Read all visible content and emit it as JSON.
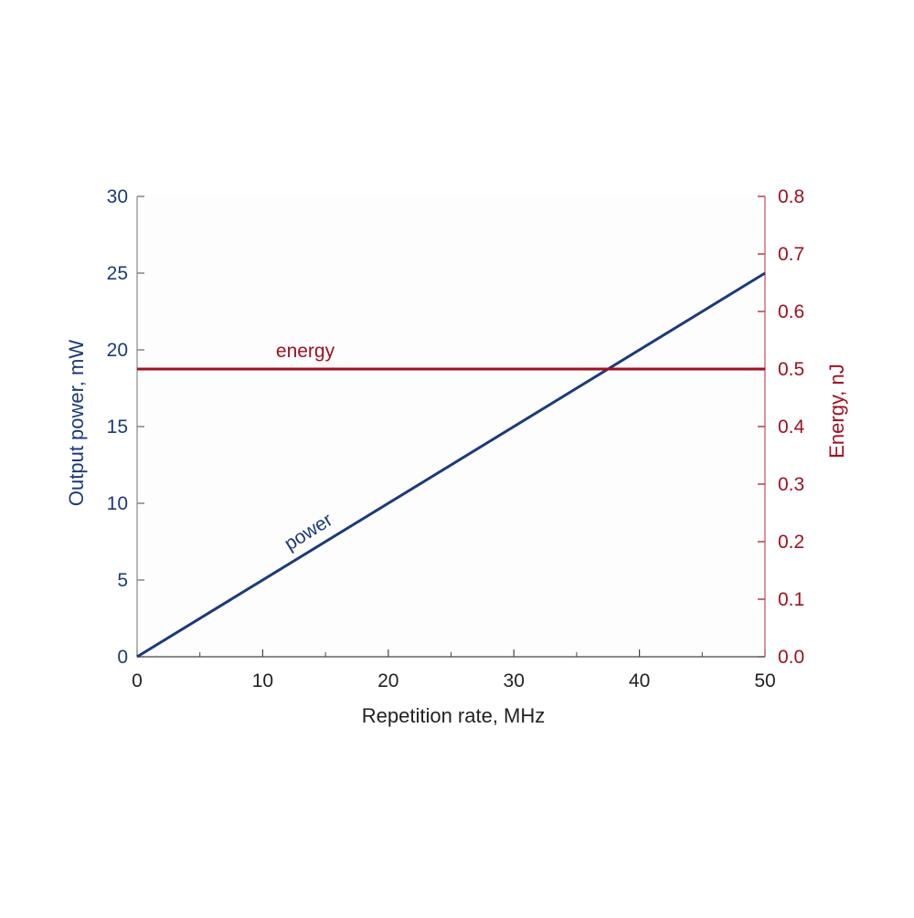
{
  "chart_data": {
    "type": "line",
    "xlabel": "Repetition rate, MHz",
    "ylabel_left": "Output power, mW",
    "ylabel_right": "Energy, nJ",
    "xlim": [
      0,
      50
    ],
    "ylim_left": [
      0,
      30
    ],
    "ylim_right": [
      0,
      0.8
    ],
    "x_ticks": [
      "0",
      "10",
      "20",
      "30",
      "40",
      "50"
    ],
    "y_left_ticks": [
      "0",
      "5",
      "10",
      "15",
      "20",
      "25",
      "30"
    ],
    "y_right_ticks": [
      "0.0",
      "0.1",
      "0.2",
      "0.3",
      "0.4",
      "0.5",
      "0.6",
      "0.7",
      "0.8"
    ],
    "grid": false,
    "series": [
      {
        "name": "power",
        "axis": "left",
        "color": "#1b3a7a",
        "x": [
          0,
          50
        ],
        "y": [
          0,
          25
        ]
      },
      {
        "name": "energy",
        "axis": "right",
        "color": "#a01020",
        "x": [
          0,
          50
        ],
        "y": [
          0.5,
          0.5
        ]
      }
    ],
    "colors": {
      "left_axis": "#1b3a7a",
      "right_axis": "#a01020",
      "x_axis": "#222222"
    }
  }
}
